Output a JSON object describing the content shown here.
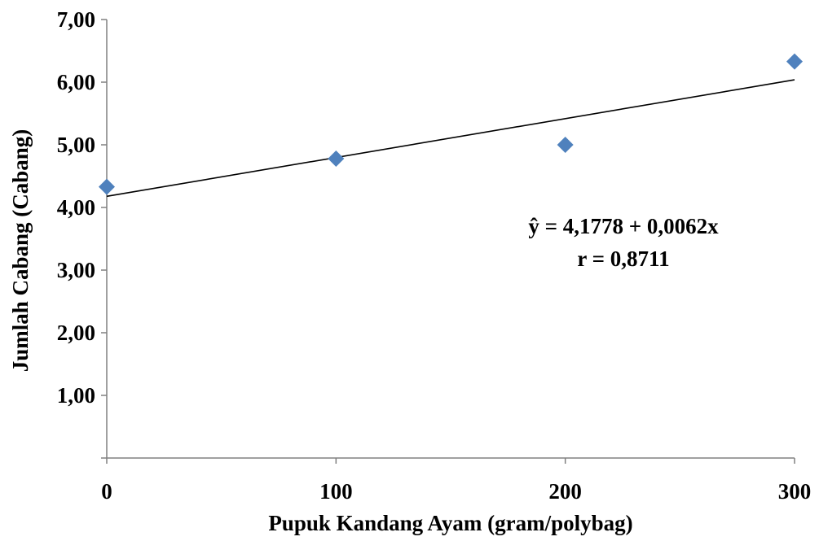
{
  "chart_data": {
    "type": "scatter",
    "title": "",
    "xlabel": "Pupuk Kandang Ayam (gram/polybag)",
    "ylabel": "Jumlah Cabang (Cabang)",
    "xlim": [
      0,
      300
    ],
    "ylim": [
      0,
      7
    ],
    "x_ticks": [
      0,
      100,
      200,
      300
    ],
    "x_tick_labels": [
      "0",
      "100",
      "200",
      "300"
    ],
    "y_ticks": [
      1,
      2,
      3,
      4,
      5,
      6,
      7
    ],
    "y_tick_labels": [
      "1,00",
      "2,00",
      "3,00",
      "4,00",
      "5,00",
      "6,00",
      "7,00"
    ],
    "grid": false,
    "marker_color": "#4f81bd",
    "line_color": "#000000",
    "points": [
      {
        "x": 0,
        "y": 4.33
      },
      {
        "x": 100,
        "y": 4.78
      },
      {
        "x": 200,
        "y": 5.0
      },
      {
        "x": 300,
        "y": 6.33
      }
    ],
    "trendline": {
      "intercept": 4.1778,
      "slope": 0.0062
    },
    "annotations": [
      "ŷ = 4,1778 + 0,0062x",
      "r = 0,8711"
    ]
  }
}
